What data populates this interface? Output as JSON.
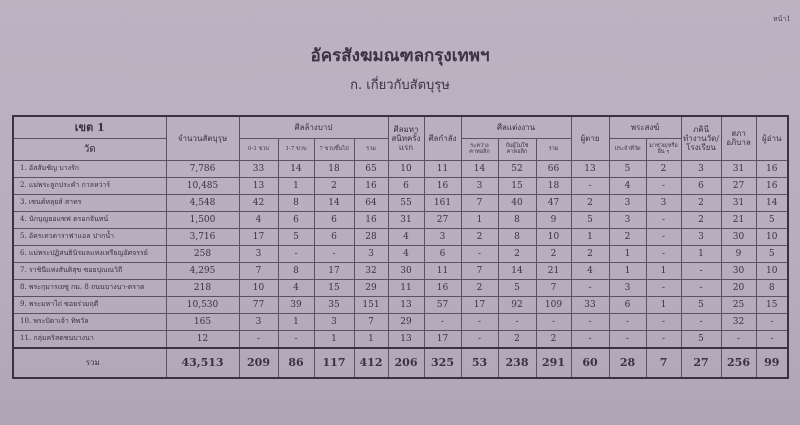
{
  "page_number": "หน้า1",
  "title": "อัครสังฆมณฑลกรุงเทพฯ",
  "subtitle": "ก.  เกี่ยวกับสัตบุรุษ",
  "table": {
    "headers": {
      "zone": "เขต 1",
      "parish": "วัด",
      "population": "จำนวนสัตบุรุษ",
      "baptism": "ศีลล้างบาป",
      "baptism_sub": [
        "0-1 ขวบ",
        "1-7 ขวบ",
        "7 ขวบขึ้นไป",
        "รวม"
      ],
      "communion": "ศีลมหาสนิทครั้งแรก",
      "confirmation": "ศีลกำลัง",
      "marriage": "ศีลแต่งงาน",
      "marriage_sub": [
        "ระหว่างคาทอลิก",
        "กับผู้ไม่ใช่คาทอลิก",
        "รวม"
      ],
      "deaths": "ผู้ตาย",
      "priests": "พระสงฆ์",
      "priests_sub": [
        "ประจำที่วัด",
        "มาช่วย/หรืออื่น ๆ"
      ],
      "sisters": "ภคินีทำงานวัด/โรงเรียน",
      "council": "สภาอภิบาล",
      "readers": "ผู้อ่าน"
    },
    "rows": [
      {
        "name": "1.  อัสสัมชัญ บางรัก",
        "values": [
          "7,786",
          "33",
          "14",
          "18",
          "65",
          "10",
          "11",
          "14",
          "52",
          "66",
          "13",
          "5",
          "2",
          "3",
          "31",
          "16"
        ]
      },
      {
        "name": "2.  แม่พระลูกประคำ กาลหว่าร์",
        "values": [
          "10,485",
          "13",
          "1",
          "2",
          "16",
          "6",
          "16",
          "3",
          "15",
          "18",
          "-",
          "4",
          "-",
          "6",
          "27",
          "16"
        ]
      },
      {
        "name": "3.  เซนต์หลุยส์ สาทร",
        "values": [
          "4,548",
          "42",
          "8",
          "14",
          "64",
          "55",
          "161",
          "7",
          "40",
          "47",
          "2",
          "3",
          "3",
          "2",
          "31",
          "14"
        ]
      },
      {
        "name": "4.  นักบุญยอแซฟ ตรอกจันทน์",
        "values": [
          "1,500",
          "4",
          "6",
          "6",
          "16",
          "31",
          "27",
          "1",
          "8",
          "9",
          "5",
          "3",
          "-",
          "2",
          "21",
          "5"
        ]
      },
      {
        "name": "5.  อัครเทวดาราฟาแอล ปากน้ำ",
        "values": [
          "3,716",
          "17",
          "5",
          "6",
          "28",
          "4",
          "3",
          "2",
          "8",
          "10",
          "1",
          "2",
          "-",
          "3",
          "30",
          "10"
        ]
      },
      {
        "name": "6.  แม่พระปฏิสนธินิรมลแห่งเหรียญอัศจรรย์",
        "values": [
          "258",
          "3",
          "-",
          "-",
          "3",
          "4",
          "6",
          "-",
          "2",
          "2",
          "2",
          "1",
          "-",
          "1",
          "9",
          "5"
        ]
      },
      {
        "name": "7.  ราชินีแห่งสันติสุข ซอยปุณณวิถี",
        "values": [
          "4,295",
          "7",
          "8",
          "17",
          "32",
          "30",
          "11",
          "7",
          "14",
          "21",
          "4",
          "1",
          "1",
          "-",
          "30",
          "10"
        ]
      },
      {
        "name": "8.  พระกุมารเยซู กม. 8 ถนนบางนา-ตราด",
        "values": [
          "218",
          "10",
          "4",
          "15",
          "29",
          "11",
          "16",
          "2",
          "5",
          "7",
          "-",
          "3",
          "-",
          "-",
          "20",
          "8"
        ]
      },
      {
        "name": "9.  พระมหาไถ่ ซอยร่วมฤดี",
        "values": [
          "10,530",
          "77",
          "39",
          "35",
          "151",
          "13",
          "57",
          "17",
          "92",
          "109",
          "33",
          "6",
          "1",
          "5",
          "25",
          "15"
        ]
      },
      {
        "name": "10. พระบิดาเจ้า ทิพวัล",
        "values": [
          "165",
          "3",
          "1",
          "3",
          "7",
          "29",
          "-",
          "-",
          "-",
          "-",
          "-",
          "-",
          "-",
          "-",
          "32",
          "-"
        ]
      },
      {
        "name": "11. กลุ่มคริสตชนบางนา",
        "values": [
          "12",
          "-",
          "-",
          "1",
          "1",
          "13",
          "17",
          "-",
          "2",
          "2",
          "-",
          "-",
          "-",
          "5",
          "-",
          "-"
        ]
      }
    ],
    "total": {
      "label": "รวม",
      "values": [
        "43,513",
        "209",
        "86",
        "117",
        "412",
        "206",
        "325",
        "53",
        "238",
        "291",
        "60",
        "28",
        "7",
        "27",
        "256",
        "99"
      ]
    }
  }
}
